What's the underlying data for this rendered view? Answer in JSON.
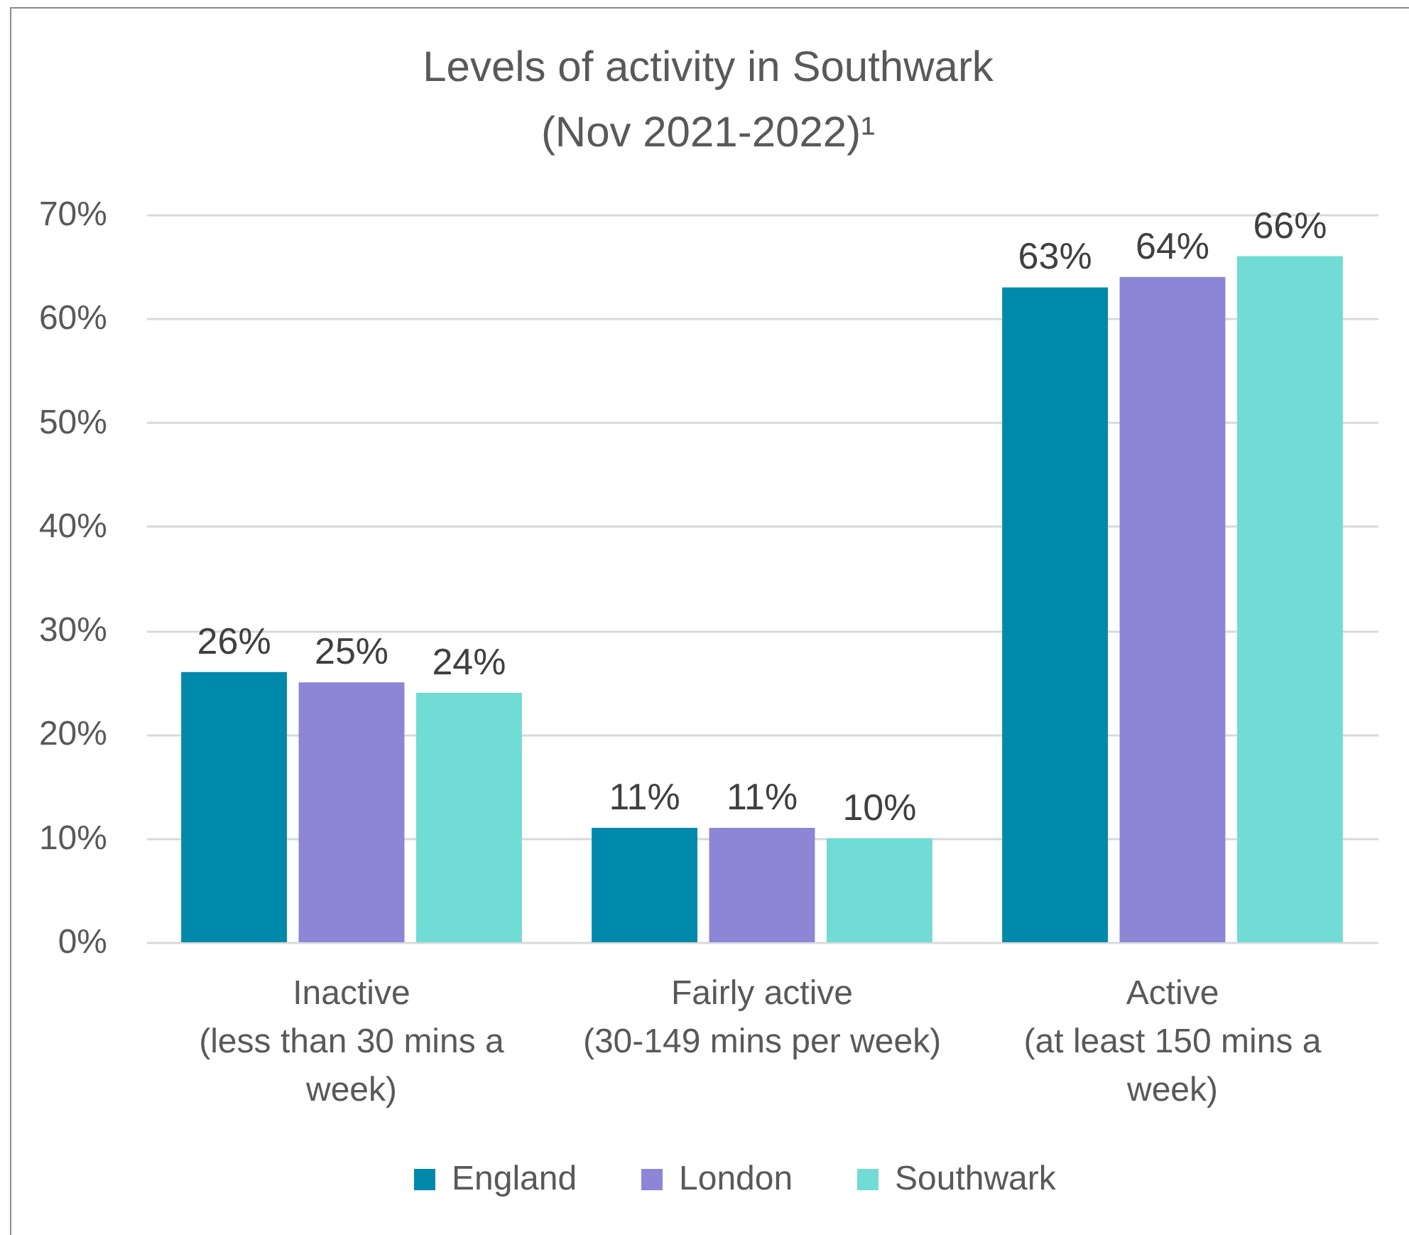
{
  "chart_data": {
    "type": "bar",
    "title": "Levels of activity in Southwark (Nov 2021-2022)¹",
    "categories": [
      "Inactive (less than 30 mins a week)",
      "Fairly active (30-149 mins per week)",
      "Active (at least 150 mins a week)"
    ],
    "series": [
      {
        "name": "England",
        "color": "#0189ac",
        "values": [
          26,
          11,
          63
        ],
        "value_labels": [
          "26%",
          "11%",
          "63%"
        ]
      },
      {
        "name": "London",
        "color": "#8d85d6",
        "values": [
          25,
          11,
          64
        ],
        "value_labels": [
          "25%",
          "11%",
          "64%"
        ]
      },
      {
        "name": "Southwark",
        "color": "#70dcd5",
        "values": [
          24,
          10,
          66
        ],
        "value_labels": [
          "24%",
          "10%",
          "66%"
        ]
      }
    ],
    "ylim": [
      0,
      70
    ],
    "yticks": [
      {
        "value": 0,
        "label": "0%"
      },
      {
        "value": 10,
        "label": "10%"
      },
      {
        "value": 20,
        "label": "20%"
      },
      {
        "value": 30,
        "label": "30%"
      },
      {
        "value": 40,
        "label": "40%"
      },
      {
        "value": 50,
        "label": "50%"
      },
      {
        "value": 60,
        "label": "60%"
      },
      {
        "value": 70,
        "label": "70%"
      }
    ],
    "grid": "y",
    "legend": "bottom"
  }
}
